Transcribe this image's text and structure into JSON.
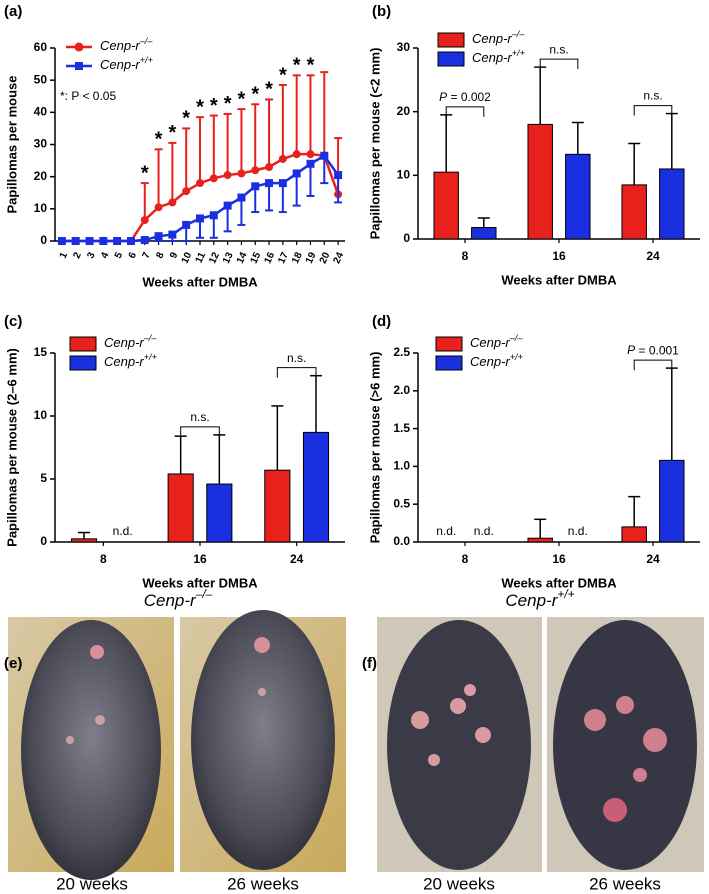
{
  "chart_data": [
    {
      "type": "line",
      "panel_label": "(a)",
      "ylabel": "Papillomas per mouse",
      "xlabel": "Weeks after DMBA",
      "categories": [
        "1",
        "2",
        "3",
        "4",
        "5",
        "6",
        "7",
        "8",
        "9",
        "10",
        "11",
        "12",
        "13",
        "14",
        "15",
        "16",
        "17",
        "18",
        "19",
        "20",
        "24"
      ],
      "ylim": [
        0,
        60
      ],
      "yticks": [
        0,
        10,
        20,
        30,
        40,
        50,
        60
      ],
      "series": [
        {
          "name": "Cenp-r–/–",
          "color": "#e8211d",
          "marker": "circle",
          "error_direction": "up",
          "values": [
            0,
            0,
            0,
            0,
            0,
            0,
            6.5,
            10.5,
            12,
            15.5,
            18,
            19.5,
            20.5,
            21,
            22,
            23,
            25.5,
            27,
            27,
            26.5,
            14.5
          ],
          "errors": [
            0,
            0,
            0,
            0,
            0,
            0,
            11.5,
            18,
            18.5,
            19.5,
            20.5,
            19.5,
            19,
            20,
            20.5,
            21,
            23,
            24.5,
            24.5,
            26,
            17.5
          ]
        },
        {
          "name": "Cenp-r+/+",
          "color": "#1a2fe0",
          "marker": "square",
          "error_direction": "down",
          "values": [
            0,
            0,
            0,
            0,
            0,
            0,
            0.3,
            1.5,
            2,
            5,
            7,
            8,
            11,
            13.5,
            17,
            18,
            18,
            21,
            24,
            26.5,
            20.5
          ],
          "errors": [
            0,
            0,
            0,
            0,
            0,
            0,
            0,
            1.5,
            2,
            5,
            6,
            7,
            8,
            8.5,
            8,
            8.5,
            9,
            10,
            10,
            8.5,
            8.5
          ]
        }
      ],
      "significance": {
        "symbol": "*",
        "categories": [
          "7",
          "8",
          "9",
          "10",
          "11",
          "12",
          "13",
          "14",
          "15",
          "16",
          "17",
          "18",
          "19"
        ]
      },
      "note": "*: P < 0.05"
    },
    {
      "type": "bar",
      "panel_label": "(b)",
      "ylabel": "Papillomas per mouse (<2 mm)",
      "xlabel": "Weeks after DMBA",
      "categories": [
        "8",
        "16",
        "24"
      ],
      "ylim": [
        0,
        30
      ],
      "yticks": [
        0,
        10,
        20,
        30
      ],
      "series": [
        {
          "name": "Cenp-r–/–",
          "color": "#e8211d",
          "values": [
            10.5,
            18,
            8.5
          ],
          "errors": [
            9,
            9,
            6.5
          ]
        },
        {
          "name": "Cenp-r+/+",
          "color": "#1a2fe0",
          "values": [
            1.8,
            13.3,
            11
          ],
          "errors": [
            1.5,
            5,
            8.7
          ]
        }
      ],
      "comparisons": [
        {
          "category": "8",
          "label": "P = 0.002"
        },
        {
          "category": "16",
          "label": "n.s."
        },
        {
          "category": "24",
          "label": "n.s."
        }
      ]
    },
    {
      "type": "bar",
      "panel_label": "(c)",
      "ylabel": "Papillomas per mouse (2–6 mm)",
      "xlabel": "Weeks after DMBA",
      "categories": [
        "8",
        "16",
        "24"
      ],
      "ylim": [
        0,
        15
      ],
      "yticks": [
        0,
        5,
        10,
        15
      ],
      "series": [
        {
          "name": "Cenp-r–/–",
          "color": "#e8211d",
          "values": [
            0.25,
            5.4,
            5.7
          ],
          "errors": [
            0.5,
            3,
            5.1
          ]
        },
        {
          "name": "Cenp-r+/+",
          "color": "#1a2fe0",
          "values": [
            null,
            4.6,
            8.7
          ],
          "value_labels": [
            "n.d.",
            null,
            null
          ],
          "errors": [
            null,
            3.9,
            4.5
          ]
        }
      ],
      "comparisons": [
        {
          "category": "16",
          "label": "n.s."
        },
        {
          "category": "24",
          "label": "n.s."
        }
      ]
    },
    {
      "type": "bar",
      "panel_label": "(d)",
      "ylabel": "Papillomas per mouse (>6 mm)",
      "xlabel": "Weeks after DMBA",
      "categories": [
        "8",
        "16",
        "24"
      ],
      "ylim": [
        0,
        2.5
      ],
      "yticks": [
        {
          "value": 0,
          "label": "0.0"
        },
        0.5,
        {
          "value": 1,
          "label": "1.0"
        },
        1.5,
        {
          "value": 2,
          "label": "2.0"
        },
        2.5
      ],
      "series": [
        {
          "name": "Cenp-r–/–",
          "color": "#e8211d",
          "values": [
            null,
            0.05,
            0.2
          ],
          "value_labels": [
            "n.d.",
            null,
            null
          ],
          "errors": [
            null,
            0.25,
            0.4
          ]
        },
        {
          "name": "Cenp-r+/+",
          "color": "#1a2fe0",
          "values": [
            null,
            null,
            1.08
          ],
          "value_labels": [
            "n.d.",
            "n.d.",
            null
          ],
          "errors": [
            null,
            null,
            1.22
          ]
        }
      ],
      "comparisons": [
        {
          "category": "24",
          "label": "P = 0.001"
        }
      ]
    }
  ],
  "photo_panels": [
    {
      "panel_label": "(e)",
      "title": "Cenp-r–/–",
      "captions": [
        "20 weeks",
        "26 weeks"
      ]
    },
    {
      "panel_label": "(f)",
      "title": "Cenp-r+/+",
      "captions": [
        "20 weeks",
        "26 weeks"
      ]
    }
  ]
}
